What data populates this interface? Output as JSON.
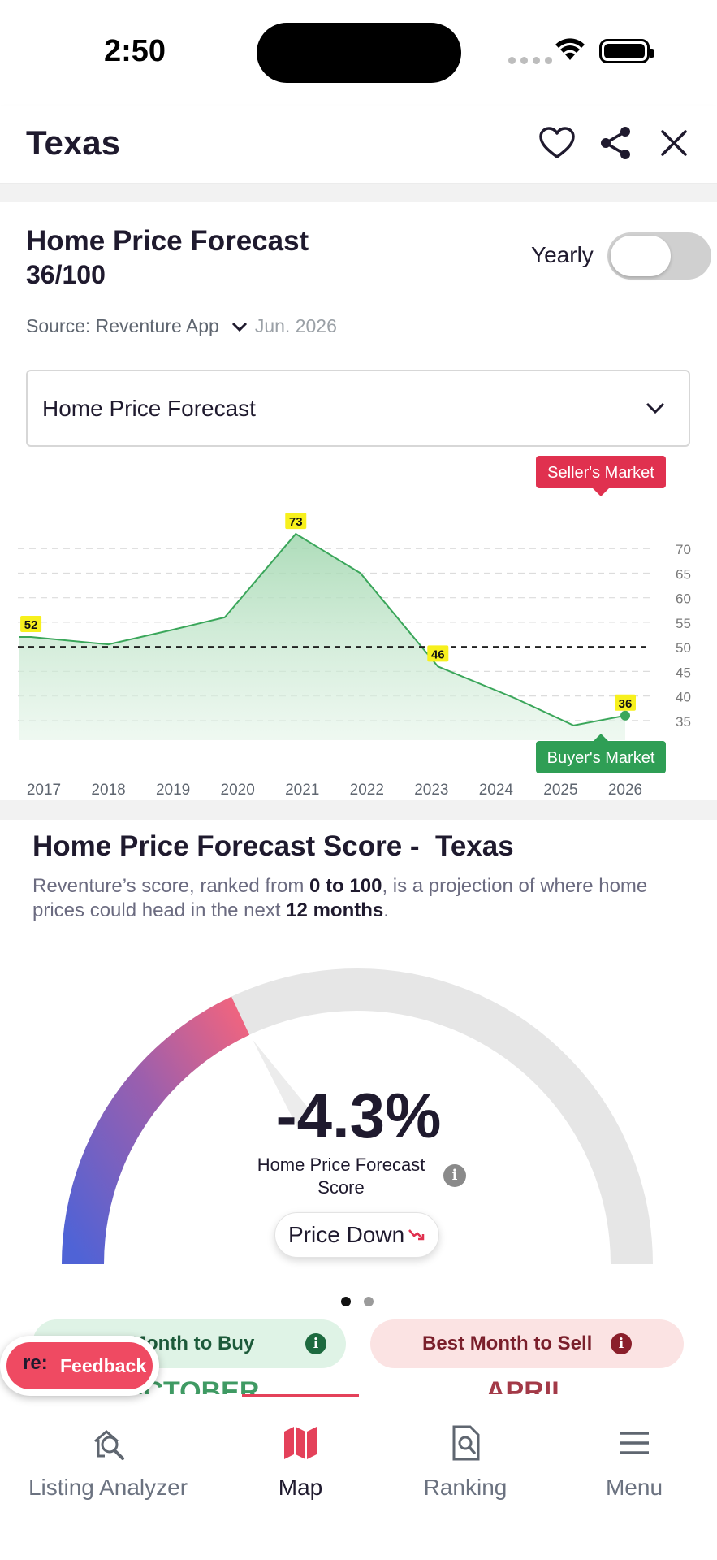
{
  "status": {
    "time": "2:50"
  },
  "header": {
    "title": "Texas"
  },
  "card": {
    "title": "Home Price Forecast",
    "score": "36/100",
    "toggle_label": "Yearly",
    "source": "Source: Reventure App",
    "date": "Jun. 2026",
    "select_value": "Home Price Forecast"
  },
  "chart_data": {
    "type": "area",
    "x": [
      2017,
      2018,
      2019,
      2020,
      2021,
      2022,
      2023,
      2024,
      2025,
      2026
    ],
    "x_tick_labels": [
      "2017",
      "2018",
      "2019",
      "2020",
      "2021",
      "2022",
      "2023",
      "2024",
      "2025",
      "2026"
    ],
    "points": [
      {
        "x": 2016.8,
        "y": 52
      },
      {
        "x": 2018.0,
        "y": 50.5
      },
      {
        "x": 2019.0,
        "y": 53.5
      },
      {
        "x": 2019.8,
        "y": 56
      },
      {
        "x": 2020.9,
        "y": 73
      },
      {
        "x": 2021.9,
        "y": 65
      },
      {
        "x": 2023.1,
        "y": 46
      },
      {
        "x": 2024.3,
        "y": 39.5
      },
      {
        "x": 2025.2,
        "y": 34
      },
      {
        "x": 2026.0,
        "y": 36
      }
    ],
    "data_labels": [
      {
        "x": 2016.8,
        "y": 52,
        "text": "52"
      },
      {
        "x": 2020.9,
        "y": 73,
        "text": "73"
      },
      {
        "x": 2023.1,
        "y": 46,
        "text": "46"
      },
      {
        "x": 2026.0,
        "y": 36,
        "text": "36"
      }
    ],
    "y_ticks": [
      70,
      65,
      60,
      55,
      50,
      45,
      40,
      35
    ],
    "ylim": [
      31,
      75
    ],
    "reference_line": 50,
    "seller_label": "Seller's Market",
    "buyer_label": "Buyer's Market",
    "line_color": "#3aa65a",
    "label_bg": "#f7f01d"
  },
  "score_section": {
    "title_prefix": "Home Price Forecast Score - ",
    "title_region": "Texas",
    "desc_1": "Reventure’s score, ranked from ",
    "desc_bold_1": "0 to 100",
    "desc_2": ", is a projection of where home prices could head in the next ",
    "desc_bold_2": "12 months",
    "desc_3": ".",
    "gauge_value": "-4.3%",
    "gauge_label": "Home Price Forecast Score",
    "gauge_fill_fraction": 0.36,
    "pill_label": "Price Down",
    "buy_pill": "Best Month to Buy",
    "buy_pill_visible": "Month to Buy",
    "sell_pill": "Best Month to Sell",
    "buy_month": "OCTOBER",
    "sell_month": "APRIL"
  },
  "feedback": {
    "logo": "re:",
    "label": "Feedback"
  },
  "tabs": [
    {
      "label": "Listing Analyzer",
      "icon": "listing-analyzer-icon"
    },
    {
      "label": "Map",
      "icon": "map-icon"
    },
    {
      "label": "Ranking",
      "icon": "ranking-icon"
    },
    {
      "label": "Menu",
      "icon": "menu-icon"
    }
  ],
  "colors": {
    "accent": "#e4415a",
    "seller": "#e0314f",
    "buyer": "#2f9e55",
    "buy_text": "#3f9a63",
    "sell_text": "#a33a48"
  }
}
